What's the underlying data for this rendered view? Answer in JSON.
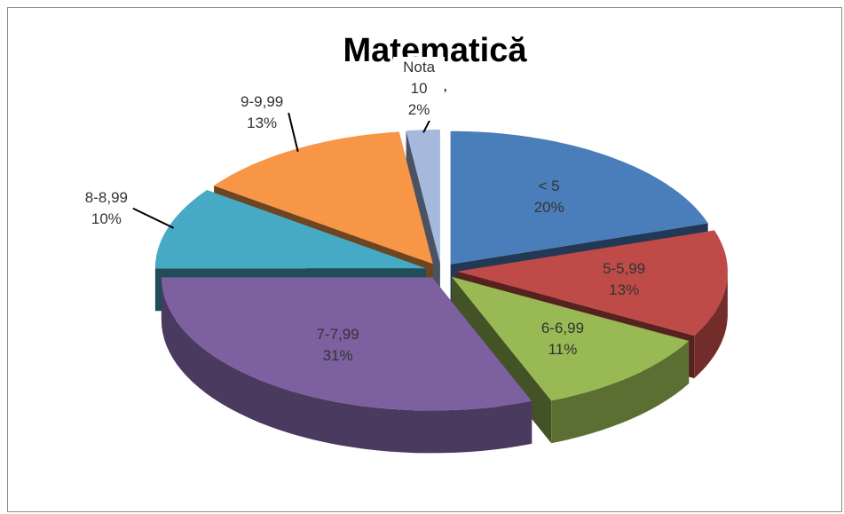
{
  "chart_data": {
    "type": "pie3d",
    "title": "Matematică",
    "categories": [
      "< 5",
      "5-5,99",
      "6-6,99",
      "7-7,99",
      "8-8,99",
      "9-9,99",
      "Nota 10"
    ],
    "values": [
      20,
      13,
      11,
      31,
      10,
      13,
      2
    ],
    "value_labels": [
      "20%",
      "13%",
      "11%",
      "31%",
      "10%",
      "13%",
      "2%"
    ],
    "colors": [
      "#4a7ebb",
      "#be4b48",
      "#98b954",
      "#7d60a0",
      "#46aac5",
      "#f79646",
      "#a5b9dc"
    ]
  }
}
